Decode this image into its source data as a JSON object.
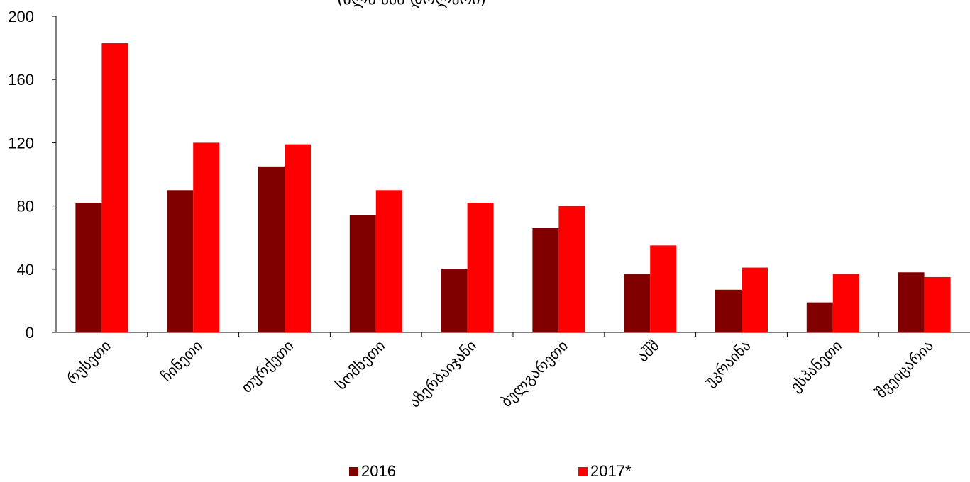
{
  "chart_data": {
    "type": "bar",
    "title": "(მლნ აშშ დოლარი)",
    "xlabel": "",
    "ylabel": "",
    "ylim": [
      0,
      200
    ],
    "yticks": [
      0,
      40,
      80,
      120,
      160,
      200
    ],
    "grid": false,
    "legend_position": "bottom",
    "categories": [
      "რუსეთი",
      "ჩინეთი",
      "თურქეთი",
      "სომხეთი",
      "აზერბაიჯანი",
      "ბულგარეთი",
      "აშშ",
      "უკრაინა",
      "ესპანეთი",
      "შვეიცარია"
    ],
    "series": [
      {
        "name": "2016",
        "color": "#800000",
        "values": [
          82,
          90,
          105,
          74,
          40,
          66,
          37,
          27,
          19,
          38
        ]
      },
      {
        "name": "2017*",
        "color": "#ff0000",
        "values": [
          183,
          120,
          119,
          90,
          82,
          80,
          55,
          41,
          37,
          35
        ]
      }
    ]
  }
}
